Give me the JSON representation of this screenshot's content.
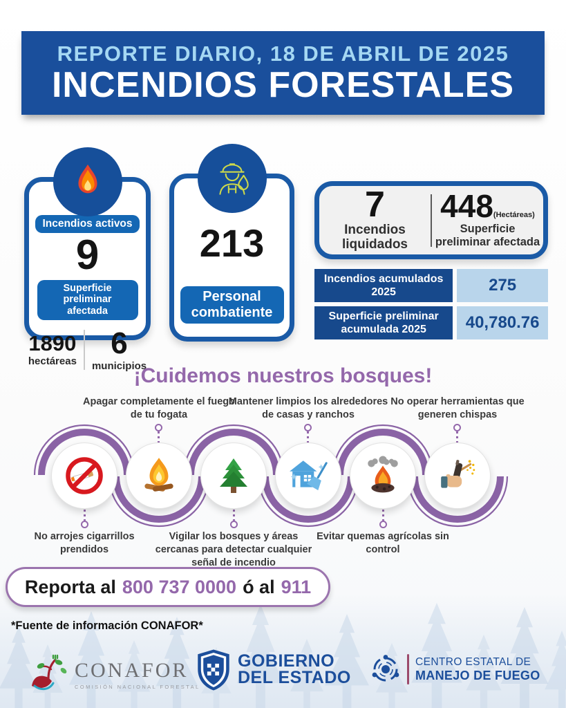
{
  "header": {
    "date_line": "REPORTE DIARIO, 18 DE ABRIL DE 2025",
    "title": "INCENDIOS FORESTALES"
  },
  "cards": {
    "active_fires": {
      "badge": "Incendios activos",
      "count": "9",
      "surface_badge": "Superficie preliminar afectada",
      "hectares": {
        "value": "1890",
        "label": "hectáreas"
      },
      "municipalities": {
        "value": "6",
        "label": "municipios"
      }
    },
    "personnel": {
      "count": "213",
      "badge": "Personal combatiente"
    },
    "extinguished": {
      "count": "7",
      "label": "Incendios liquidados",
      "surface": {
        "value": "448",
        "unit": "(Hectáreas)",
        "label": "Superficie preliminar afectada"
      }
    },
    "accumulated": {
      "rows": [
        {
          "label": "Incendios acumulados 2025",
          "value": "275"
        },
        {
          "label": "Superficie preliminar acumulada 2025",
          "value": "40,780.76"
        }
      ]
    }
  },
  "prevention": {
    "title": "¡Cuidemos nuestros bosques!",
    "tips": [
      {
        "icon": "no-smoking-icon",
        "label": "No arrojes cigarrillos prendidos",
        "position": "bottom"
      },
      {
        "icon": "campfire-icon",
        "label": "Apagar completamente el fuego de tu fogata",
        "position": "top"
      },
      {
        "icon": "pine-tree-icon",
        "label": "Vigilar los bosques y áreas cercanas para detectar cualquier señal de incendio",
        "position": "bottom"
      },
      {
        "icon": "house-broom-icon",
        "label": "Mantener limpios los alrededores de casas y ranchos",
        "position": "top"
      },
      {
        "icon": "burn-pile-icon",
        "label": "Evitar quemas agrícolas sin control",
        "position": "bottom"
      },
      {
        "icon": "spark-tool-icon",
        "label": "No operar herramientas que generen chispas",
        "position": "top"
      }
    ]
  },
  "report": {
    "prefix": "Reporta al",
    "phone": "800 737 0000",
    "middle": "ó al",
    "emergency": "911"
  },
  "source": "*Fuente de información CONAFOR*",
  "footer": {
    "conafor": {
      "name": "CONAFOR",
      "subtitle": "COMISIÓN NACIONAL FORESTAL"
    },
    "gobierno": {
      "line1": "GOBIERNO",
      "line2": "DEL ESTADO"
    },
    "centro": {
      "line1": "CENTRO ESTATAL DE",
      "line2": "MANEJO DE FUEGO"
    }
  },
  "colors": {
    "header_blue": "#1a4f9c",
    "border_blue": "#1a5aa6",
    "pill_blue": "#1467b4",
    "table_dark_blue": "#17498c",
    "table_light_blue": "#b9d5eb",
    "accent_purple": "#9468ab",
    "date_light_blue": "#a5d8f3"
  }
}
